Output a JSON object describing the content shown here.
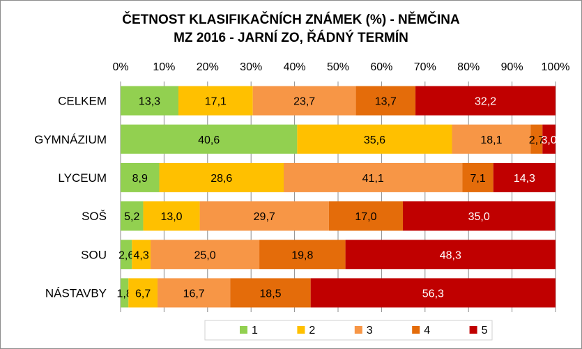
{
  "chart_data": {
    "type": "bar",
    "orientation": "horizontal-stacked-100",
    "title": "ČETNOST KLASIFIKAČNÍCH ZNÁMEK (%) - NĚMČINA",
    "subtitle": "MZ 2016 - JARNÍ ZO, ŘÁDNÝ TERMÍN",
    "categories": [
      "CELKEM",
      "GYMNÁZIUM",
      "LYCEUM",
      "SOŠ",
      "SOU",
      "NÁSTAVBY"
    ],
    "series": [
      {
        "name": "1",
        "color": "#92d050",
        "values": [
          13.3,
          40.6,
          8.9,
          5.2,
          2.6,
          1.8
        ],
        "labels": [
          "13,3",
          "40,6",
          "8,9",
          "5,2",
          "2,6",
          "1,8"
        ]
      },
      {
        "name": "2",
        "color": "#ffc000",
        "values": [
          17.1,
          35.6,
          28.6,
          13.0,
          4.3,
          6.7
        ],
        "labels": [
          "17,1",
          "35,6",
          "28,6",
          "13,0",
          "4,3",
          "6,7"
        ]
      },
      {
        "name": "3",
        "color": "#f79646",
        "values": [
          23.7,
          18.1,
          41.1,
          29.7,
          25.0,
          16.7
        ],
        "labels": [
          "23,7",
          "18,1",
          "41,1",
          "29,7",
          "25,0",
          "16,7"
        ]
      },
      {
        "name": "4",
        "color": "#e46c0a",
        "values": [
          13.7,
          2.7,
          7.1,
          17.0,
          19.8,
          18.5
        ],
        "labels": [
          "13,7",
          "2,7",
          "7,1",
          "17,0",
          "19,8",
          "18,5"
        ]
      },
      {
        "name": "5",
        "color": "#c00000",
        "values": [
          32.2,
          3.0,
          14.3,
          35.0,
          48.3,
          56.3
        ],
        "labels": [
          "32,2",
          "3,0",
          "14,3",
          "35,0",
          "48,3",
          "56,3"
        ]
      }
    ],
    "xlim": [
      0,
      100
    ],
    "xticks": [
      0,
      10,
      20,
      30,
      40,
      50,
      60,
      70,
      80,
      90,
      100
    ],
    "xtick_labels": [
      "0%",
      "10%",
      "20%",
      "30%",
      "40%",
      "50%",
      "60%",
      "70%",
      "80%",
      "90%",
      "100%"
    ],
    "x_axis_position": "top",
    "grid": true,
    "legend": "bottom"
  }
}
